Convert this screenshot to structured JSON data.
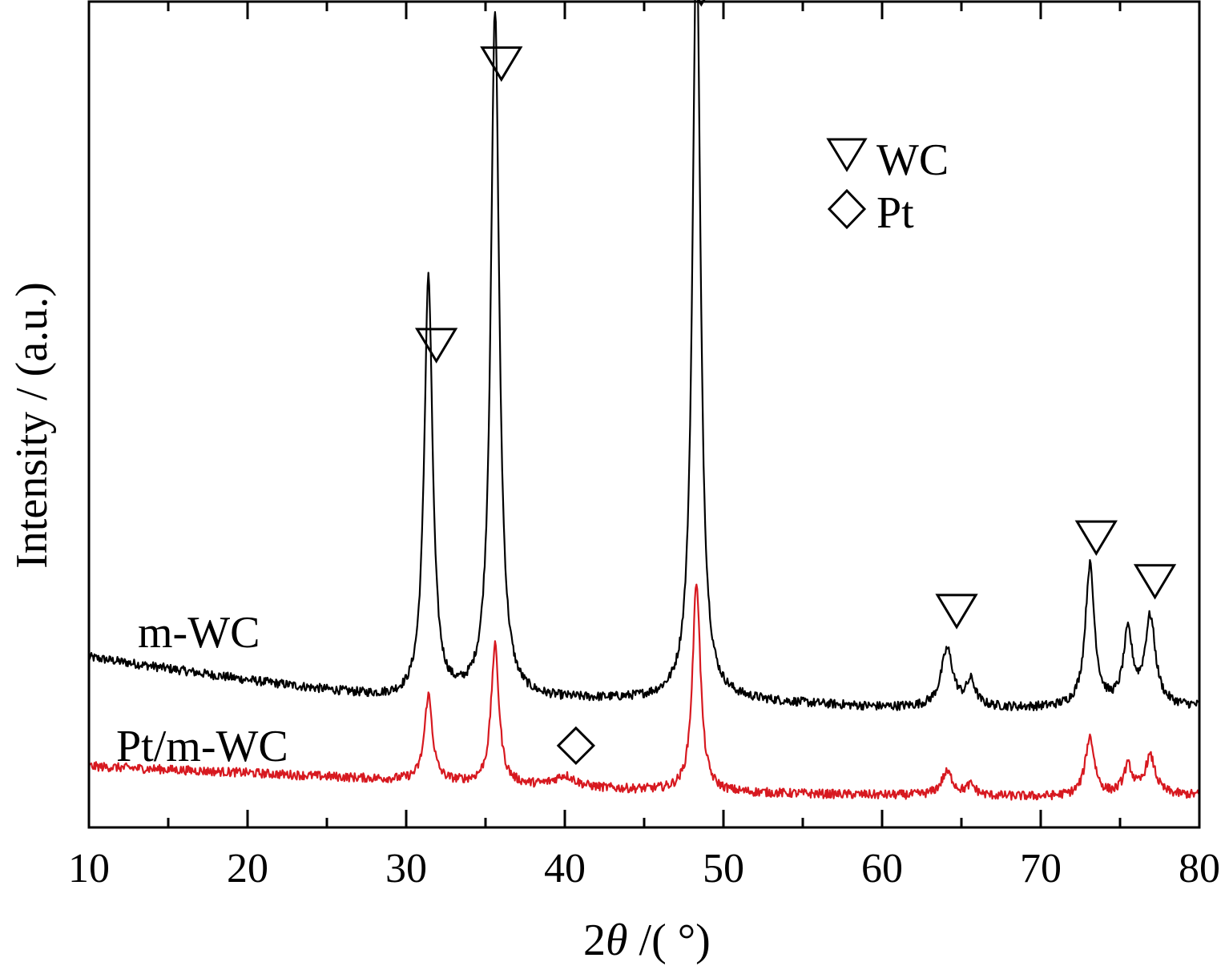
{
  "chart_data": {
    "type": "line",
    "xlabel_prefix": "2",
    "xlabel_symbol": "θ",
    "xlabel_suffix": " /( °)",
    "ylabel": "Intensity / (a.u.)",
    "xlim": [
      10,
      80
    ],
    "ylim": [
      0,
      100
    ],
    "x_ticks": [
      10,
      20,
      30,
      40,
      50,
      60,
      70,
      80
    ],
    "x_minor_ticks": [
      15,
      25,
      35,
      45,
      55,
      65,
      75
    ],
    "grid": false,
    "legend": {
      "placement": "top-right",
      "entries": [
        {
          "marker": "down-triangle",
          "label": "WC"
        },
        {
          "marker": "diamond",
          "label": "Pt"
        }
      ]
    },
    "series": [
      {
        "name": "m-WC",
        "color": "#000000",
        "baseline": [
          [
            10,
            20.6
          ],
          [
            20,
            17.8
          ],
          [
            30,
            15.3
          ],
          [
            40,
            15.4
          ],
          [
            50,
            15.4
          ],
          [
            60,
            14.5
          ],
          [
            70,
            14.4
          ],
          [
            80,
            14.6
          ]
        ],
        "peaks": [
          {
            "x": 31.4,
            "height": 51.0,
            "width": 0.32
          },
          {
            "x": 35.6,
            "height": 83.5,
            "width": 0.32
          },
          {
            "x": 48.3,
            "height": 93.8,
            "width": 0.3
          },
          {
            "x": 64.1,
            "height": 7.0,
            "width": 0.45
          },
          {
            "x": 65.6,
            "height": 3.0,
            "width": 0.35
          },
          {
            "x": 73.1,
            "height": 17.1,
            "width": 0.35
          },
          {
            "x": 75.5,
            "height": 8.6,
            "width": 0.35
          },
          {
            "x": 76.9,
            "height": 10.6,
            "width": 0.4
          }
        ]
      },
      {
        "name": "Pt/m-WC",
        "color": "#d71920",
        "baseline": [
          [
            10,
            7.4
          ],
          [
            20,
            6.6
          ],
          [
            30,
            5.7
          ],
          [
            40,
            4.8
          ],
          [
            50,
            4.2
          ],
          [
            60,
            3.9
          ],
          [
            70,
            3.7
          ],
          [
            80,
            3.9
          ]
        ],
        "peaks": [
          {
            "x": 31.4,
            "height": 10.4,
            "width": 0.3
          },
          {
            "x": 35.6,
            "height": 16.7,
            "width": 0.3
          },
          {
            "x": 40.0,
            "height": 1.4,
            "width": 0.8
          },
          {
            "x": 48.3,
            "height": 25.5,
            "width": 0.3
          },
          {
            "x": 64.1,
            "height": 2.8,
            "width": 0.45
          },
          {
            "x": 65.6,
            "height": 1.2,
            "width": 0.35
          },
          {
            "x": 73.1,
            "height": 7.1,
            "width": 0.35
          },
          {
            "x": 75.5,
            "height": 3.4,
            "width": 0.35
          },
          {
            "x": 76.9,
            "height": 4.6,
            "width": 0.4
          }
        ]
      }
    ],
    "annotations": [
      {
        "marker": "down-triangle",
        "x": 31.9,
        "y": 58.4,
        "phase": "WC"
      },
      {
        "marker": "down-triangle",
        "x": 36.0,
        "y": 92.5,
        "phase": "WC"
      },
      {
        "marker": "down-triangle",
        "x": 48.6,
        "y": 101.6,
        "phase": "WC"
      },
      {
        "marker": "down-triangle",
        "x": 64.7,
        "y": 26.2,
        "phase": "WC"
      },
      {
        "marker": "down-triangle",
        "x": 73.5,
        "y": 35.1,
        "phase": "WC"
      },
      {
        "marker": "down-triangle",
        "x": 77.2,
        "y": 29.8,
        "phase": "WC"
      },
      {
        "marker": "diamond",
        "x": 40.7,
        "y": 9.9,
        "phase": "Pt"
      }
    ]
  }
}
